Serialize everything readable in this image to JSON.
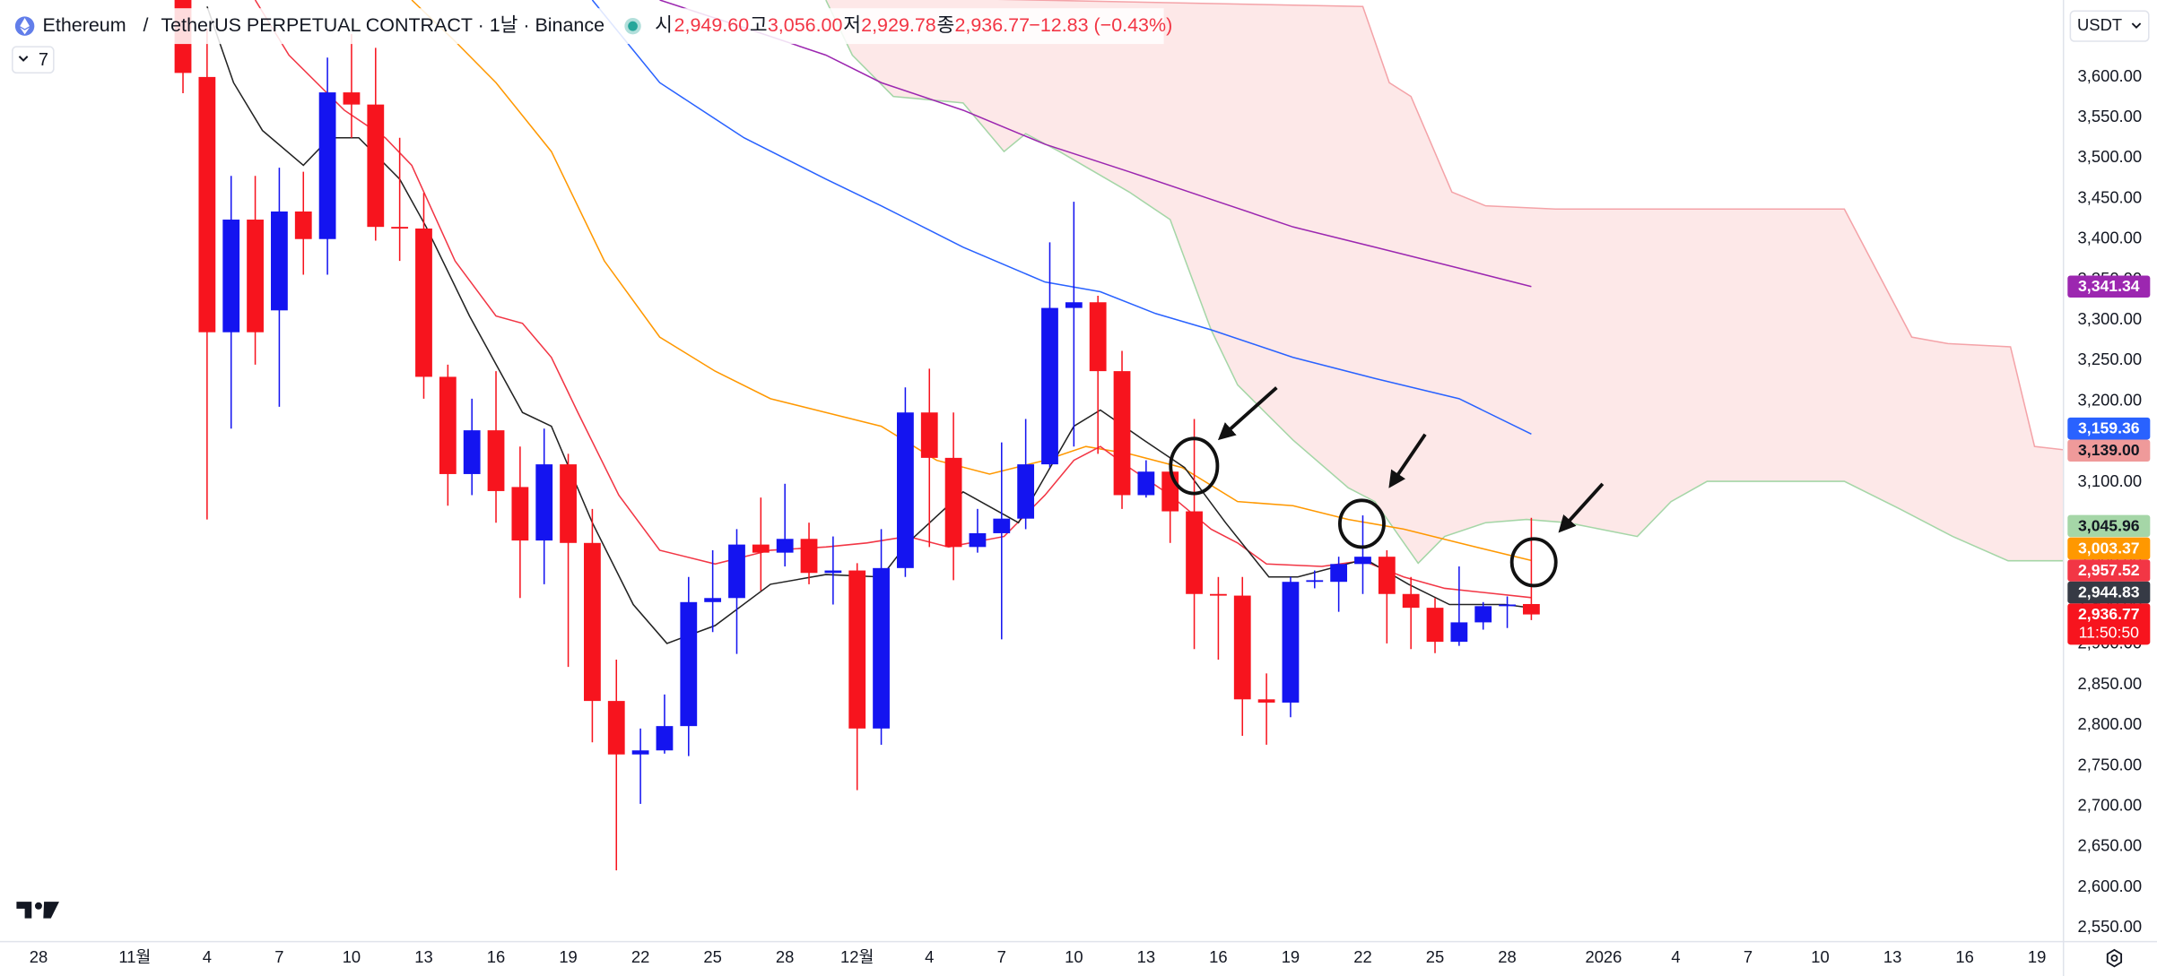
{
  "header": {
    "symbol": "Ethereum",
    "separator": "/",
    "contract": "TetherUS PERPETUAL CONTRACT · 1날 · Binance",
    "ohlc": [
      {
        "key": "시",
        "value": "2,949.60"
      },
      {
        "key": "고",
        "value": "3,056.00"
      },
      {
        "key": "저",
        "value": "2,929.78"
      },
      {
        "key": "종",
        "value": "2,936.77"
      }
    ],
    "change": "−12.83 (−0.43%)",
    "indicators": "7",
    "currency": "USDT"
  },
  "chart_data": {
    "type": "candlestick",
    "up_color": "#1414f0",
    "down_color": "#f7141e",
    "xlim": [
      -1.6,
      84.1
    ],
    "ylim": [
      2533,
      3695
    ],
    "xticks": [
      {
        "value": 0,
        "label": "28"
      },
      {
        "value": 4,
        "label": "11월"
      },
      {
        "value": 7,
        "label": "4"
      },
      {
        "value": 10,
        "label": "7"
      },
      {
        "value": 13,
        "label": "10"
      },
      {
        "value": 16,
        "label": "13"
      },
      {
        "value": 19,
        "label": "16"
      },
      {
        "value": 22,
        "label": "19"
      },
      {
        "value": 25,
        "label": "22"
      },
      {
        "value": 28,
        "label": "25"
      },
      {
        "value": 31,
        "label": "28"
      },
      {
        "value": 34,
        "label": "12월"
      },
      {
        "value": 37,
        "label": "4"
      },
      {
        "value": 40,
        "label": "7"
      },
      {
        "value": 43,
        "label": "10"
      },
      {
        "value": 46,
        "label": "13"
      },
      {
        "value": 49,
        "label": "16"
      },
      {
        "value": 52,
        "label": "19"
      },
      {
        "value": 55,
        "label": "22"
      },
      {
        "value": 58,
        "label": "25"
      },
      {
        "value": 61,
        "label": "28"
      },
      {
        "value": 65,
        "label": "2026"
      },
      {
        "value": 68,
        "label": "4"
      },
      {
        "value": 71,
        "label": "7"
      },
      {
        "value": 74,
        "label": "10"
      },
      {
        "value": 77,
        "label": "13"
      },
      {
        "value": 80,
        "label": "16"
      },
      {
        "value": 83,
        "label": "19"
      }
    ],
    "yticks": [
      {
        "value": 2550,
        "label": "2,550.00"
      },
      {
        "value": 2600,
        "label": "2,600.00"
      },
      {
        "value": 2650,
        "label": "2,650.00"
      },
      {
        "value": 2700,
        "label": "2,700.00"
      },
      {
        "value": 2750,
        "label": "2,750.00"
      },
      {
        "value": 2800,
        "label": "2,800.00"
      },
      {
        "value": 2850,
        "label": "2,850.00"
      },
      {
        "value": 2900,
        "label": "2,900.00"
      },
      {
        "value": 2950,
        "label": "2,950.00"
      },
      {
        "value": 3000,
        "label": "3,000.00"
      },
      {
        "value": 3050,
        "label": "3,050.00"
      },
      {
        "value": 3100,
        "label": "3,100.00"
      },
      {
        "value": 3150,
        "label": "3,150.00"
      },
      {
        "value": 3200,
        "label": "3,200.00"
      },
      {
        "value": 3250,
        "label": "3,250.00"
      },
      {
        "value": 3300,
        "label": "3,300.00"
      },
      {
        "value": 3350,
        "label": "3,350.00"
      },
      {
        "value": 3400,
        "label": "3,400.00"
      },
      {
        "value": 3450,
        "label": "3,450.00"
      },
      {
        "value": 3500,
        "label": "3,500.00"
      },
      {
        "value": 3550,
        "label": "3,550.00"
      },
      {
        "value": 3600,
        "label": "3,600.00"
      }
    ],
    "candles": {
      "x": [
        6,
        7,
        8,
        9,
        10,
        11,
        12,
        13,
        14,
        15,
        16,
        17,
        18,
        19,
        20,
        21,
        22,
        23,
        24,
        25,
        26,
        27,
        28,
        29,
        30,
        31,
        32,
        33,
        34,
        35,
        36,
        37,
        38,
        39,
        40,
        41,
        42,
        43,
        44,
        45,
        46,
        47,
        48,
        49,
        50,
        51,
        52,
        53,
        54,
        55,
        56,
        57,
        58,
        59,
        60,
        61,
        62
      ],
      "open": [
        3905,
        3600,
        3285,
        3424,
        3312,
        3434,
        3400,
        3581,
        3566,
        3415,
        3413,
        3230,
        3110,
        3164,
        3094,
        3028,
        3122,
        3025,
        2830,
        2764,
        2769,
        2799,
        2952,
        2957,
        3023,
        3013,
        3030,
        2988,
        2991,
        2796,
        2994,
        3186,
        3130,
        3020,
        3037,
        3055,
        3122,
        3315,
        3322,
        3237,
        3084,
        3113,
        3064,
        2962,
        2960,
        2832,
        2828,
        2977,
        2977,
        2999,
        3008,
        2962,
        2945,
        2903,
        2927,
        2947,
        2949.6
      ],
      "high": [
        3920,
        3660,
        3478,
        3478,
        3488,
        3483,
        3624,
        3653,
        3636,
        3525,
        3457,
        3245,
        3203,
        3237,
        3144,
        3166,
        3135,
        3067,
        2881,
        2796,
        2838,
        2983,
        3016,
        3042,
        3081,
        3098,
        3050,
        3033,
        3000,
        3042,
        3217,
        3240,
        3186,
        3067,
        3149,
        3178,
        3396,
        3446,
        3330,
        3262,
        3127,
        3130,
        3178,
        2983,
        2983,
        2864,
        2983,
        2991,
        3008,
        3059,
        3016,
        2983,
        2957,
        2996,
        2952,
        2959,
        3056
      ],
      "low": [
        3580,
        3054,
        3166,
        3245,
        3193,
        3356,
        3356,
        3525,
        3398,
        3373,
        3203,
        3071,
        3084,
        3050,
        2957,
        2974,
        2872,
        2779,
        2621,
        2703,
        2765,
        2762,
        2915,
        2888,
        2966,
        2996,
        2974,
        2949,
        2720,
        2776,
        2983,
        3020,
        2979,
        3013,
        2906,
        3042,
        3118,
        3144,
        3135,
        3067,
        3081,
        3025,
        2894,
        2881,
        2787,
        2776,
        2810,
        2969,
        2940,
        2962,
        2901,
        2894,
        2889,
        2898,
        2918,
        2920,
        2929.78
      ],
      "close": [
        3605,
        3285,
        3424,
        3285,
        3434,
        3400,
        3581,
        3566,
        3415,
        3413,
        3230,
        3110,
        3164,
        3089,
        3028,
        3122,
        3025,
        2830,
        2764,
        2769,
        2799,
        2952,
        2957,
        3023,
        3013,
        3030,
        2988,
        2991,
        2796,
        2994,
        3186,
        3130,
        3020,
        3037,
        3055,
        3122,
        3315,
        3322,
        3237,
        3084,
        3113,
        3064,
        2962,
        2960,
        2832,
        2828,
        2977,
        2979,
        2999,
        3008,
        2962,
        2945,
        2903,
        2927,
        2947,
        2949,
        2936.77
      ]
    },
    "cloud": {
      "fill": "#fde8e8",
      "span_a": {
        "color": "#a5d6a7",
        "x": [
          32.7,
          33.8,
          35.5,
          38.4,
          40.1,
          41.0,
          42.4,
          45.3,
          47.0,
          48.7,
          49.8,
          52.1,
          54.4,
          55.5,
          57.3,
          58.4,
          60.1,
          61.8,
          63.5,
          66.4,
          67.8,
          69.3,
          75.0,
          77.3,
          79.5,
          81.8,
          84.4
        ],
        "values": [
          3695,
          3627,
          3576,
          3568,
          3508,
          3530,
          3508,
          3458,
          3424,
          3288,
          3220,
          3152,
          3093,
          3076,
          3000,
          3033,
          3050,
          3054,
          3050,
          3033,
          3076,
          3101,
          3101,
          3067,
          3033,
          3003,
          3003
        ]
      },
      "span_b": {
        "color": "#f4a3a8",
        "x": [
          32.7,
          55.0,
          56.1,
          57.0,
          58.7,
          60.1,
          63.0,
          75.0,
          77.8,
          79.3,
          81.9,
          82.9,
          84.4
        ],
        "values": [
          3700,
          3687,
          3593,
          3576,
          3458,
          3441,
          3437,
          3437,
          3279,
          3271,
          3267,
          3144,
          3139
        ]
      }
    },
    "lines": [
      {
        "color": "#9c27b0",
        "x": [
          25.8,
          29.3,
          32.7,
          35.0,
          38.4,
          41.8,
          45.3,
          48.7,
          52.1,
          55.5,
          59.0,
          62
        ],
        "values": [
          3695,
          3661,
          3627,
          3593,
          3559,
          3517,
          3483,
          3449,
          3415,
          3390,
          3364,
          3341.34
        ]
      },
      {
        "color": "#2962ff",
        "x": [
          23.0,
          25.8,
          29.3,
          32.7,
          35.0,
          38.4,
          41.8,
          44.1,
          46.4,
          48.7,
          52.1,
          55.5,
          59.0,
          62
        ],
        "values": [
          3695,
          3593,
          3525,
          3474,
          3441,
          3390,
          3347,
          3335,
          3308,
          3288,
          3254,
          3228,
          3203,
          3159.36
        ]
      },
      {
        "color": "#ff9800",
        "x": [
          15.5,
          17.3,
          19.0,
          21.3,
          23.5,
          25.8,
          28.1,
          30.4,
          32.7,
          35.0,
          37.3,
          39.5,
          41.8,
          43.5,
          45.3,
          47.5,
          49.8,
          52.1,
          54.4,
          56.7,
          59.0,
          62
        ],
        "values": [
          3695,
          3644,
          3593,
          3508,
          3373,
          3279,
          3237,
          3203,
          3186,
          3169,
          3127,
          3110,
          3127,
          3144,
          3135,
          3118,
          3076,
          3071,
          3054,
          3042,
          3025,
          3003.37
        ]
      },
      {
        "color": "#f23645",
        "x": [
          9.0,
          10.4,
          12.7,
          14.4,
          15.5,
          17.3,
          19.0,
          20.1,
          21.3,
          22.4,
          24.1,
          25.8,
          28.1,
          30.4,
          32.7,
          34.4,
          36.1,
          37.8,
          40.1,
          41.8,
          43.0,
          44.1,
          45.3,
          47.0,
          48.7,
          49.8,
          51.0,
          53.3,
          55.0,
          56.7,
          58.4,
          62
        ],
        "values": [
          3695,
          3627,
          3559,
          3525,
          3491,
          3373,
          3305,
          3296,
          3254,
          3186,
          3084,
          3016,
          2999,
          3016,
          3020,
          3025,
          3033,
          3020,
          3033,
          3084,
          3127,
          3144,
          3118,
          3084,
          3042,
          3025,
          2999,
          2996,
          3003,
          2983,
          2969,
          2957.52
        ]
      },
      {
        "color": "#222222",
        "x": [
          7,
          8.1,
          9.3,
          11,
          12.1,
          13.3,
          15,
          16.1,
          17.9,
          20.1,
          21.3,
          23,
          24.7,
          26.1,
          28.1,
          30.4,
          32.7,
          35,
          36.1,
          38.4,
          40.7,
          43,
          44.1,
          45.9,
          47.6,
          49.3,
          51.1,
          52.3,
          55.1,
          56.9,
          58.6,
          60.9,
          62
        ],
        "values": [
          3687,
          3593,
          3534,
          3491,
          3525,
          3525,
          3474,
          3415,
          3305,
          3186,
          3169,
          3050,
          2949,
          2901,
          2923,
          2974,
          2986,
          2983,
          3025,
          3088,
          3050,
          3169,
          3189,
          3152,
          3118,
          3050,
          2983,
          2983,
          3005,
          2974,
          2949,
          2949,
          2944.83
        ]
      }
    ],
    "price_tags": [
      {
        "value": 3341.34,
        "label": "3,341.34",
        "color": "#9c27b0",
        "text_color": "#ffffff"
      },
      {
        "value": 3159.36,
        "label": "3,159.36",
        "color": "#2962ff",
        "text_color": "#ffffff"
      },
      {
        "value": 3139,
        "label": "3,139.00",
        "color": "#ef9a9a",
        "text_color": "#131722"
      },
      {
        "value": 3045.96,
        "label": "3,045.96",
        "color": "#a5d6a7",
        "text_color": "#131722"
      },
      {
        "value": 3003.37,
        "label": "3,003.37",
        "color": "#ff9800",
        "text_color": "#ffffff"
      },
      {
        "value": 2957.52,
        "label": "2,957.52",
        "color": "#f23645",
        "text_color": "#ffffff"
      },
      {
        "value": 2944.83,
        "label": "2,944.83",
        "color": "#363a45",
        "text_color": "#ffffff"
      },
      {
        "value": 2936.77,
        "label": "2,936.77",
        "color": "#f7141e",
        "text_color": "#ffffff",
        "countdown": "11:50:50"
      }
    ]
  }
}
